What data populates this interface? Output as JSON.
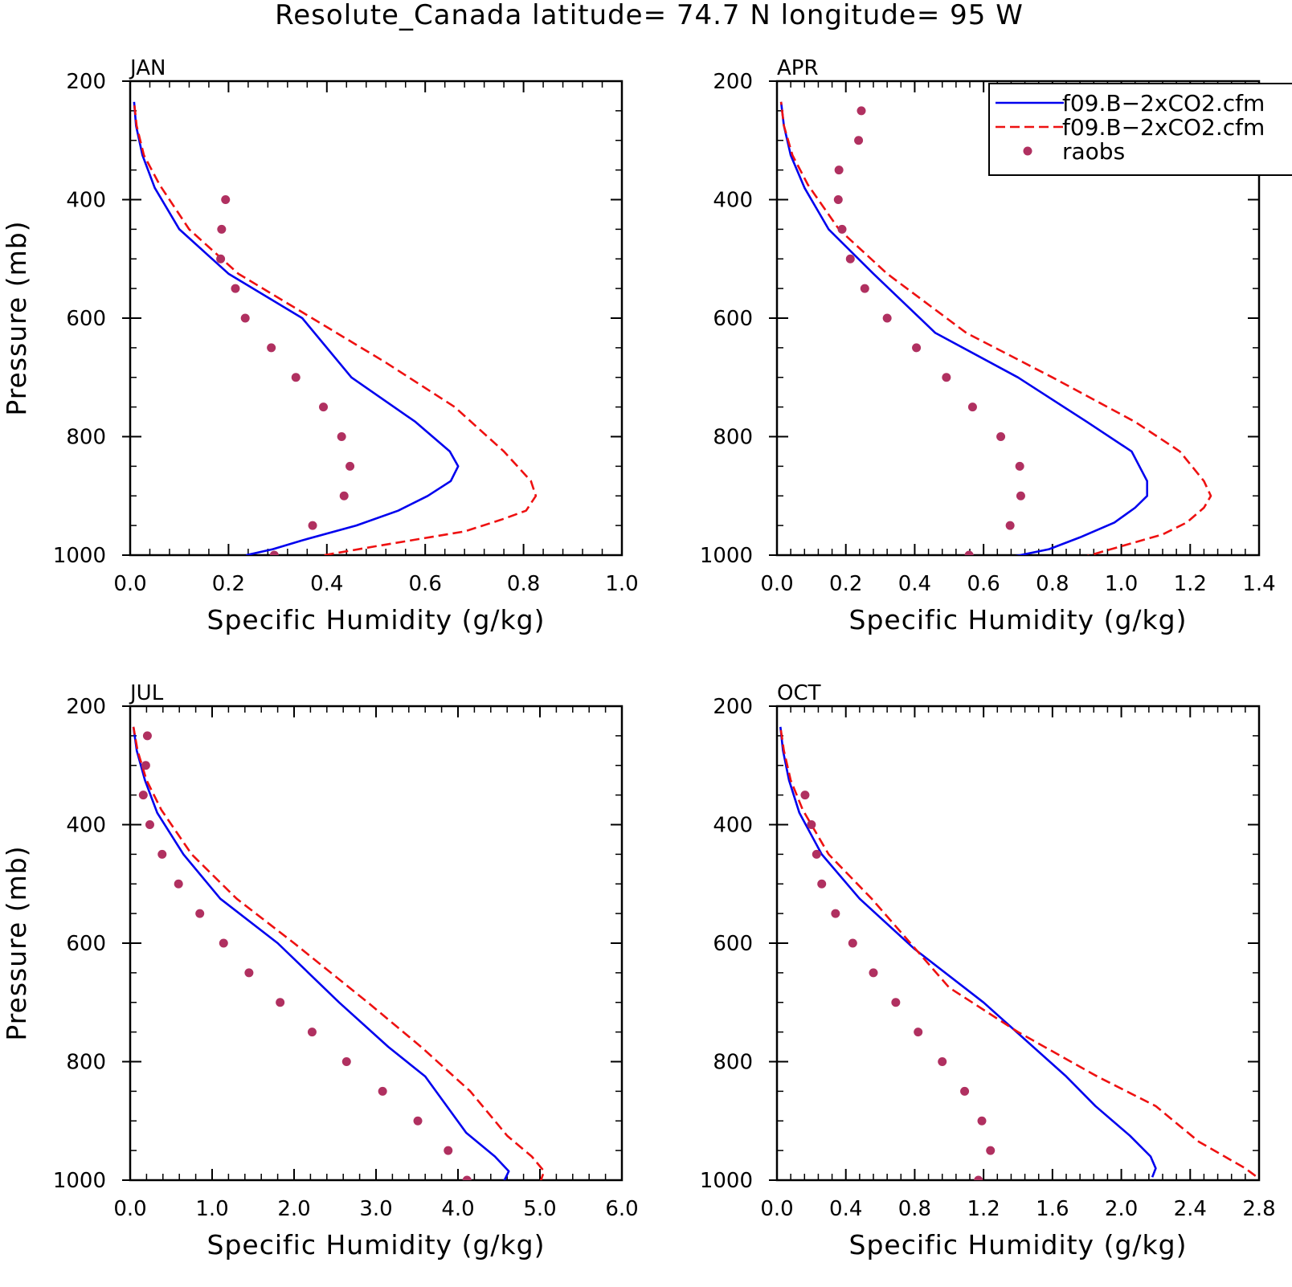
{
  "title": "Resolute_Canada  latitude= 74.7 N longitude= 95 W",
  "colors": {
    "series1": "#0000ee",
    "series2": "#ee1111",
    "raobs": "#b03060",
    "axis": "#000000",
    "background": "#ffffff"
  },
  "legend": {
    "placement": "top-right of APR panel",
    "entries": [
      "f09.B−2xCO2.cfm",
      "f09.B−2xCO2.cfm",
      "raobs"
    ]
  },
  "chart_data": [
    {
      "type": "line",
      "panel": "JAN",
      "xlabel": "Specific Humidity (g/kg)",
      "ylabel": "Pressure (mb)",
      "xlim": [
        0,
        1.0
      ],
      "ylim": [
        1000,
        200
      ],
      "y_reversed": true,
      "xticks": [
        0.0,
        0.2,
        0.4,
        0.6,
        0.8,
        1.0
      ],
      "xticklabels": [
        "0.0",
        "0.2",
        "0.4",
        "0.6",
        "0.8",
        "1.0"
      ],
      "yticks": [
        200,
        400,
        600,
        800,
        1000
      ],
      "yticklabels": [
        "200",
        "400",
        "600",
        "800",
        "1000"
      ],
      "grid": false,
      "series": [
        {
          "name": "f09.B−2xCO2.cfm",
          "style": "solid",
          "x": [
            0.236,
            0.29,
            0.35,
            0.46,
            0.545,
            0.605,
            0.652,
            0.667,
            0.65,
            0.58,
            0.45,
            0.35,
            0.2,
            0.1,
            0.05,
            0.025,
            0.012,
            0.008
          ],
          "y": [
            1000,
            990,
            975,
            950,
            925,
            900,
            875,
            850,
            825,
            775,
            700,
            600,
            525,
            450,
            380,
            325,
            275,
            235
          ]
        },
        {
          "name": "f09.B−2xCO2.cfm",
          "style": "dashed",
          "x": [
            0.395,
            0.5,
            0.68,
            0.755,
            0.805,
            0.825,
            0.815,
            0.76,
            0.66,
            0.52,
            0.37,
            0.22,
            0.12,
            0.06,
            0.028,
            0.013,
            0.008
          ],
          "y": [
            1000,
            985,
            960,
            940,
            925,
            900,
            875,
            825,
            750,
            675,
            600,
            525,
            450,
            375,
            325,
            275,
            235
          ]
        },
        {
          "name": "raobs",
          "style": "markers",
          "x": [
            0.194,
            0.186,
            0.184,
            0.214,
            0.234,
            0.287,
            0.337,
            0.393,
            0.43,
            0.447,
            0.435,
            0.371,
            0.293
          ],
          "y": [
            400,
            450,
            500,
            550,
            600,
            650,
            700,
            750,
            800,
            850,
            900,
            950,
            1000
          ]
        }
      ]
    },
    {
      "type": "line",
      "panel": "APR",
      "xlabel": "Specific Humidity (g/kg)",
      "ylabel": "",
      "xlim": [
        0,
        1.4
      ],
      "ylim": [
        1000,
        200
      ],
      "y_reversed": true,
      "xticks": [
        0.0,
        0.2,
        0.4,
        0.6,
        0.8,
        1.0,
        1.2,
        1.4
      ],
      "xticklabels": [
        "0.0",
        "0.2",
        "0.4",
        "0.6",
        "0.8",
        "1.0",
        "1.2",
        "1.4"
      ],
      "yticks": [
        200,
        400,
        600,
        800,
        1000
      ],
      "yticklabels": [
        "200",
        "400",
        "600",
        "800",
        "1000"
      ],
      "grid": false,
      "series": [
        {
          "name": "f09.B−2xCO2.cfm",
          "style": "solid",
          "x": [
            0.665,
            0.79,
            0.88,
            0.98,
            1.04,
            1.075,
            1.075,
            1.03,
            0.9,
            0.7,
            0.46,
            0.28,
            0.15,
            0.08,
            0.04,
            0.02,
            0.012
          ],
          "y": [
            1005,
            990,
            970,
            945,
            920,
            900,
            875,
            825,
            775,
            700,
            625,
            525,
            450,
            380,
            325,
            275,
            235
          ]
        },
        {
          "name": "f09.B−2xCO2.cfm",
          "style": "dashed",
          "x": [
            0.88,
            1.0,
            1.12,
            1.19,
            1.24,
            1.26,
            1.24,
            1.17,
            1.04,
            0.8,
            0.55,
            0.32,
            0.18,
            0.09,
            0.045,
            0.02,
            0.012
          ],
          "y": [
            1005,
            985,
            965,
            945,
            920,
            900,
            875,
            825,
            775,
            700,
            625,
            525,
            450,
            375,
            325,
            275,
            235
          ]
        },
        {
          "name": "raobs",
          "style": "markers",
          "x": [
            0.245,
            0.237,
            0.18,
            0.178,
            0.189,
            0.213,
            0.255,
            0.32,
            0.405,
            0.492,
            0.568,
            0.65,
            0.705,
            0.708,
            0.677,
            0.558
          ],
          "y": [
            250,
            300,
            350,
            400,
            450,
            500,
            550,
            600,
            650,
            700,
            750,
            800,
            850,
            900,
            950,
            1000
          ]
        }
      ]
    },
    {
      "type": "line",
      "panel": "JUL",
      "xlabel": "Specific Humidity (g/kg)",
      "ylabel": "Pressure (mb)",
      "xlim": [
        0,
        6.0
      ],
      "ylim": [
        1000,
        200
      ],
      "y_reversed": true,
      "xticks": [
        0.0,
        1.0,
        2.0,
        3.0,
        4.0,
        5.0,
        6.0
      ],
      "xticklabels": [
        "0.0",
        "1.0",
        "2.0",
        "3.0",
        "4.0",
        "5.0",
        "6.0"
      ],
      "yticks": [
        200,
        400,
        600,
        800,
        1000
      ],
      "yticklabels": [
        "200",
        "400",
        "600",
        "800",
        "1000"
      ],
      "grid": false,
      "series": [
        {
          "name": "f09.B−2xCO2.cfm",
          "style": "solid",
          "x": [
            4.55,
            4.62,
            4.45,
            4.1,
            3.6,
            3.15,
            2.55,
            1.8,
            1.1,
            0.65,
            0.33,
            0.18,
            0.08,
            0.04
          ],
          "y": [
            1005,
            985,
            960,
            920,
            825,
            775,
            700,
            600,
            525,
            450,
            380,
            325,
            275,
            235
          ]
        },
        {
          "name": "f09.B−2xCO2.cfm",
          "style": "dashed",
          "x": [
            5.0,
            5.05,
            4.9,
            4.6,
            4.15,
            3.55,
            2.9,
            2.0,
            1.3,
            0.75,
            0.38,
            0.2,
            0.09,
            0.04
          ],
          "y": [
            1005,
            985,
            960,
            925,
            850,
            775,
            700,
            600,
            525,
            450,
            375,
            325,
            275,
            235
          ]
        },
        {
          "name": "raobs",
          "style": "markers",
          "x": [
            0.21,
            0.19,
            0.16,
            0.24,
            0.39,
            0.59,
            0.85,
            1.14,
            1.45,
            1.83,
            2.22,
            2.64,
            3.08,
            3.51,
            3.88,
            4.11
          ],
          "y": [
            250,
            300,
            350,
            400,
            450,
            500,
            550,
            600,
            650,
            700,
            750,
            800,
            850,
            900,
            950,
            1000
          ]
        }
      ]
    },
    {
      "type": "line",
      "panel": "OCT",
      "xlabel": "Specific Humidity (g/kg)",
      "ylabel": "",
      "xlim": [
        0,
        2.8
      ],
      "ylim": [
        1000,
        200
      ],
      "y_reversed": true,
      "xticks": [
        0.0,
        0.4,
        0.8,
        1.2,
        1.6,
        2.0,
        2.4,
        2.8
      ],
      "xticklabels": [
        "0.0",
        "0.4",
        "0.8",
        "1.2",
        "1.6",
        "2.0",
        "2.4",
        "2.8"
      ],
      "yticks": [
        200,
        400,
        600,
        800,
        1000
      ],
      "yticklabels": [
        "200",
        "400",
        "600",
        "800",
        "1000"
      ],
      "grid": false,
      "series": [
        {
          "name": "f09.B−2xCO2.cfm",
          "style": "solid",
          "x": [
            2.18,
            2.2,
            2.17,
            2.05,
            1.85,
            1.68,
            1.2,
            0.8,
            0.48,
            0.26,
            0.13,
            0.07,
            0.035,
            0.02
          ],
          "y": [
            995,
            980,
            960,
            925,
            875,
            825,
            700,
            610,
            525,
            450,
            380,
            325,
            275,
            235
          ]
        },
        {
          "name": "f09.B−2xCO2.cfm",
          "style": "dashed",
          "x": [
            2.78,
            2.72,
            2.6,
            2.45,
            2.2,
            1.86,
            1.4,
            1.0,
            0.55,
            0.3,
            0.15,
            0.08,
            0.04,
            0.02
          ],
          "y": [
            993,
            980,
            960,
            935,
            875,
            825,
            750,
            675,
            525,
            450,
            375,
            325,
            275,
            235
          ]
        },
        {
          "name": "raobs",
          "style": "markers",
          "x": [
            0.163,
            0.2,
            0.23,
            0.26,
            0.34,
            0.44,
            0.56,
            0.69,
            0.82,
            0.96,
            1.09,
            1.19,
            1.24,
            1.17
          ],
          "y": [
            350,
            400,
            450,
            500,
            550,
            600,
            650,
            700,
            750,
            800,
            850,
            900,
            950,
            1000
          ]
        }
      ]
    }
  ]
}
